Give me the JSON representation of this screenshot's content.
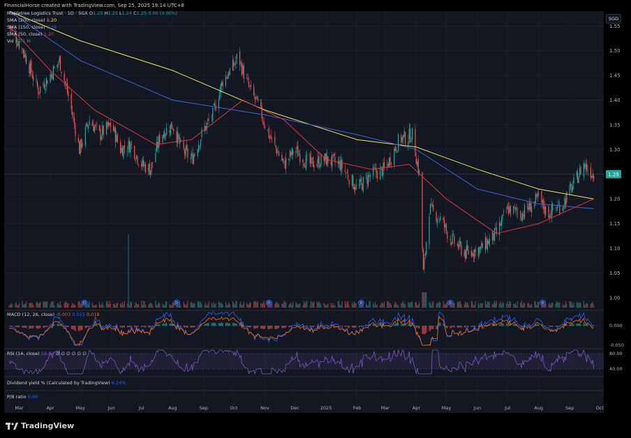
{
  "header": {
    "title": "FinancialHorse created with TradingView.com, Sep 25, 2025 19:14 UTC+8"
  },
  "symbol": {
    "name": "Mapletree Logistics Trust · 1D · SGX",
    "o_label": "O",
    "o": "1.25",
    "h_label": "H",
    "h": "1.25",
    "l_label": "L",
    "l": "1.24",
    "c_label": "C",
    "c": "1.25",
    "chg": "0.00 (0.00%)"
  },
  "legend": {
    "sma200_label": "SMA (200, close)",
    "sma200_val": "1.20",
    "sma150_label": "SMA (150, close)",
    "sma150_val": "1.18",
    "sma50_label": "SMA (50, close)",
    "sma50_val": "1.20",
    "vol_label": "Vol",
    "vol_val": "6.71 M"
  },
  "macd": {
    "label": "MACD (12, 26, close)",
    "v1": "-0.003",
    "v2": "0.015",
    "v3": "0.018"
  },
  "rsi": {
    "label": "RSI (14, close)",
    "val": "58.82",
    "extra": "∅ ∅ ∅ ∅ ∅ ∅"
  },
  "dividend": {
    "label": "Dividend yield % (Calculated by TradingView)",
    "val": "6.24%"
  },
  "pb": {
    "label": "P/B ratio",
    "val": "0.99"
  },
  "currency": "SGD",
  "brand": "TradingView",
  "colors": {
    "up": "#26a69a",
    "down": "#ef5350",
    "sma200": "#f2e15c",
    "sma150": "#3d67d9",
    "sma50": "#e0363f",
    "macd": "#2962ff",
    "signal": "#ff6d00",
    "rsi": "#7e57c2",
    "price_tag": "#26a69a",
    "dividend": "#2962ff",
    "pb": "#2962ff"
  },
  "chart_data": [
    {
      "type": "candlestick",
      "title": "Mapletree Logistics Trust · 1D · SGX",
      "ylim": [
        0.98,
        1.58
      ],
      "y_ticks": [
        1.0,
        1.05,
        1.1,
        1.15,
        1.2,
        1.25,
        1.3,
        1.35,
        1.4,
        1.45,
        1.5,
        1.55
      ],
      "x_ticks": [
        "Mar",
        "Apr",
        "May",
        "Jun",
        "Jul",
        "Aug",
        "Sep",
        "Oct",
        "Nov",
        "Dec",
        "2025",
        "Feb",
        "Mar",
        "Apr",
        "May",
        "Jun",
        "Jul",
        "Aug",
        "Sep",
        "Oct"
      ],
      "last_price": "1.25",
      "close_path": [
        [
          "2024-02-20",
          1.55
        ],
        [
          "2024-03-05",
          1.5
        ],
        [
          "2024-03-20",
          1.42
        ],
        [
          "2024-04-01",
          1.45
        ],
        [
          "2024-04-10",
          1.48
        ],
        [
          "2024-04-20",
          1.4
        ],
        [
          "2024-04-30",
          1.3
        ],
        [
          "2024-05-10",
          1.36
        ],
        [
          "2024-05-20",
          1.33
        ],
        [
          "2024-06-01",
          1.35
        ],
        [
          "2024-06-10",
          1.3
        ],
        [
          "2024-06-20",
          1.31
        ],
        [
          "2024-07-01",
          1.27
        ],
        [
          "2024-07-10",
          1.26
        ],
        [
          "2024-07-20",
          1.33
        ],
        [
          "2024-08-01",
          1.35
        ],
        [
          "2024-08-10",
          1.3
        ],
        [
          "2024-08-20",
          1.28
        ],
        [
          "2024-09-01",
          1.34
        ],
        [
          "2024-09-10",
          1.37
        ],
        [
          "2024-09-20",
          1.44
        ],
        [
          "2024-10-01",
          1.47
        ],
        [
          "2024-10-05",
          1.49
        ],
        [
          "2024-10-15",
          1.43
        ],
        [
          "2024-10-25",
          1.39
        ],
        [
          "2024-11-05",
          1.33
        ],
        [
          "2024-11-20",
          1.27
        ],
        [
          "2024-12-01",
          1.3
        ],
        [
          "2024-12-15",
          1.27
        ],
        [
          "2025-01-01",
          1.28
        ],
        [
          "2025-01-15",
          1.27
        ],
        [
          "2025-02-01",
          1.22
        ],
        [
          "2025-02-15",
          1.25
        ],
        [
          "2025-03-01",
          1.26
        ],
        [
          "2025-03-15",
          1.32
        ],
        [
          "2025-03-28",
          1.33
        ],
        [
          "2025-04-04",
          1.25
        ],
        [
          "2025-04-08",
          1.05
        ],
        [
          "2025-04-14",
          1.18
        ],
        [
          "2025-04-25",
          1.16
        ],
        [
          "2025-05-05",
          1.12
        ],
        [
          "2025-05-20",
          1.09
        ],
        [
          "2025-06-05",
          1.1
        ],
        [
          "2025-06-20",
          1.13
        ],
        [
          "2025-07-01",
          1.18
        ],
        [
          "2025-07-15",
          1.17
        ],
        [
          "2025-08-01",
          1.2
        ],
        [
          "2025-08-10",
          1.17
        ],
        [
          "2025-08-25",
          1.19
        ],
        [
          "2025-09-05",
          1.23
        ],
        [
          "2025-09-15",
          1.27
        ],
        [
          "2025-09-25",
          1.25
        ]
      ],
      "sma200": [
        [
          "2024-02-20",
          1.58
        ],
        [
          "2024-05-01",
          1.52
        ],
        [
          "2024-08-01",
          1.46
        ],
        [
          "2024-11-01",
          1.38
        ],
        [
          "2025-02-01",
          1.32
        ],
        [
          "2025-04-01",
          1.305
        ],
        [
          "2025-06-01",
          1.26
        ],
        [
          "2025-08-01",
          1.22
        ],
        [
          "2025-09-25",
          1.2
        ]
      ],
      "sma150": [
        [
          "2024-02-20",
          1.58
        ],
        [
          "2024-05-01",
          1.48
        ],
        [
          "2024-08-01",
          1.4
        ],
        [
          "2024-11-01",
          1.37
        ],
        [
          "2025-02-01",
          1.33
        ],
        [
          "2025-04-01",
          1.3
        ],
        [
          "2025-06-01",
          1.22
        ],
        [
          "2025-08-01",
          1.19
        ],
        [
          "2025-09-25",
          1.18
        ]
      ],
      "sma50": [
        [
          "2024-02-20",
          1.55
        ],
        [
          "2024-04-01",
          1.46
        ],
        [
          "2024-05-15",
          1.38
        ],
        [
          "2024-07-15",
          1.31
        ],
        [
          "2024-08-20",
          1.32
        ],
        [
          "2024-10-10",
          1.4
        ],
        [
          "2024-11-20",
          1.36
        ],
        [
          "2025-01-01",
          1.28
        ],
        [
          "2025-02-15",
          1.26
        ],
        [
          "2025-03-25",
          1.27
        ],
        [
          "2025-05-01",
          1.2
        ],
        [
          "2025-06-20",
          1.13
        ],
        [
          "2025-08-01",
          1.15
        ],
        [
          "2025-09-25",
          1.2
        ]
      ]
    }
  ]
}
